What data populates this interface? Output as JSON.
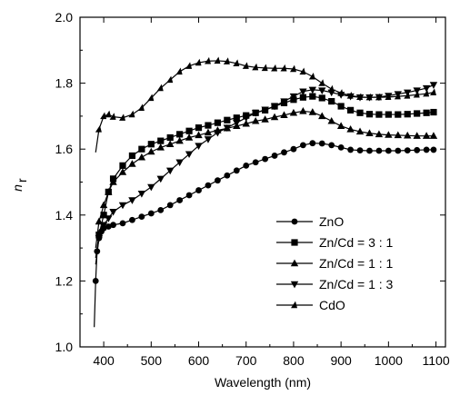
{
  "chart_data": {
    "type": "line",
    "xlabel": "Wavelength (nm)",
    "ylabel": "n",
    "ylabel_sub": "r",
    "xlim": [
      350,
      1120
    ],
    "ylim": [
      1.0,
      2.0
    ],
    "xticks": [
      400,
      500,
      600,
      700,
      800,
      900,
      1000,
      1100
    ],
    "yticks": [
      1.0,
      1.2,
      1.4,
      1.6,
      1.8,
      2.0
    ],
    "xtick_labels": [
      "400",
      "500",
      "600",
      "700",
      "800",
      "900",
      "1000",
      "1100"
    ],
    "ytick_labels": [
      "1.0",
      "1.2",
      "1.4",
      "1.6",
      "1.8",
      "2.0"
    ],
    "grid": false,
    "legend_position": "bottom-right",
    "series": [
      {
        "name": "ZnO",
        "marker": "circle",
        "x": [
          380,
          383,
          386,
          390,
          395,
          400,
          410,
          420,
          440,
          460,
          480,
          500,
          520,
          540,
          560,
          580,
          600,
          620,
          640,
          660,
          680,
          700,
          720,
          740,
          760,
          780,
          800,
          820,
          840,
          860,
          880,
          900,
          920,
          940,
          960,
          980,
          1000,
          1020,
          1040,
          1060,
          1080,
          1095
        ],
        "y": [
          1.06,
          1.2,
          1.29,
          1.33,
          1.35,
          1.36,
          1.365,
          1.37,
          1.375,
          1.385,
          1.395,
          1.405,
          1.415,
          1.43,
          1.445,
          1.46,
          1.475,
          1.49,
          1.505,
          1.52,
          1.535,
          1.55,
          1.56,
          1.57,
          1.58,
          1.59,
          1.6,
          1.612,
          1.618,
          1.617,
          1.612,
          1.605,
          1.598,
          1.596,
          1.595,
          1.595,
          1.595,
          1.595,
          1.596,
          1.597,
          1.598,
          1.598
        ]
      },
      {
        "name": "Zn/Cd = 3 : 1",
        "marker": "square",
        "x": [
          383,
          390,
          400,
          410,
          420,
          440,
          460,
          480,
          500,
          520,
          540,
          560,
          580,
          600,
          620,
          640,
          660,
          680,
          700,
          720,
          740,
          760,
          780,
          800,
          820,
          840,
          860,
          880,
          900,
          920,
          940,
          960,
          980,
          1000,
          1020,
          1040,
          1060,
          1080,
          1095
        ],
        "y": [
          1.27,
          1.34,
          1.4,
          1.47,
          1.51,
          1.55,
          1.58,
          1.6,
          1.615,
          1.625,
          1.635,
          1.645,
          1.655,
          1.665,
          1.672,
          1.68,
          1.688,
          1.695,
          1.702,
          1.71,
          1.718,
          1.73,
          1.74,
          1.75,
          1.757,
          1.76,
          1.755,
          1.745,
          1.73,
          1.718,
          1.71,
          1.706,
          1.705,
          1.705,
          1.705,
          1.706,
          1.708,
          1.71,
          1.712
        ]
      },
      {
        "name": "Zn/Cd = 1 : 1",
        "marker": "triangle-up",
        "x": [
          383,
          390,
          400,
          410,
          420,
          440,
          460,
          480,
          500,
          520,
          540,
          560,
          580,
          600,
          620,
          640,
          660,
          680,
          700,
          720,
          740,
          760,
          780,
          800,
          820,
          840,
          860,
          880,
          900,
          920,
          940,
          960,
          980,
          1000,
          1020,
          1040,
          1060,
          1080,
          1095
        ],
        "y": [
          1.3,
          1.38,
          1.43,
          1.47,
          1.5,
          1.53,
          1.555,
          1.575,
          1.592,
          1.605,
          1.615,
          1.625,
          1.635,
          1.642,
          1.65,
          1.657,
          1.663,
          1.67,
          1.677,
          1.685,
          1.69,
          1.697,
          1.703,
          1.71,
          1.715,
          1.712,
          1.7,
          1.685,
          1.67,
          1.66,
          1.653,
          1.648,
          1.645,
          1.643,
          1.642,
          1.641,
          1.64,
          1.64,
          1.64
        ]
      },
      {
        "name": "Zn/Cd = 1 : 3",
        "marker": "triangle-down",
        "x": [
          383,
          390,
          400,
          410,
          420,
          440,
          460,
          480,
          500,
          520,
          540,
          560,
          580,
          600,
          620,
          640,
          660,
          680,
          700,
          720,
          740,
          760,
          780,
          800,
          820,
          840,
          860,
          880,
          900,
          920,
          940,
          960,
          980,
          1000,
          1020,
          1040,
          1060,
          1080,
          1095
        ],
        "y": [
          1.25,
          1.33,
          1.37,
          1.39,
          1.41,
          1.43,
          1.445,
          1.465,
          1.485,
          1.51,
          1.535,
          1.56,
          1.585,
          1.61,
          1.63,
          1.65,
          1.665,
          1.68,
          1.695,
          1.71,
          1.72,
          1.73,
          1.745,
          1.76,
          1.775,
          1.78,
          1.778,
          1.772,
          1.765,
          1.76,
          1.757,
          1.757,
          1.758,
          1.762,
          1.767,
          1.772,
          1.778,
          1.785,
          1.795
        ]
      },
      {
        "name": "CdO",
        "marker": "half-triangle",
        "x": [
          383,
          390,
          400,
          410,
          420,
          440,
          460,
          480,
          500,
          520,
          540,
          560,
          580,
          600,
          620,
          640,
          660,
          680,
          700,
          720,
          740,
          760,
          780,
          800,
          820,
          840,
          860,
          880,
          900,
          920,
          940,
          960,
          980,
          1000,
          1020,
          1040,
          1060,
          1080,
          1095
        ],
        "y": [
          1.59,
          1.66,
          1.7,
          1.705,
          1.698,
          1.695,
          1.705,
          1.725,
          1.755,
          1.785,
          1.81,
          1.835,
          1.852,
          1.862,
          1.867,
          1.868,
          1.866,
          1.86,
          1.852,
          1.848,
          1.846,
          1.845,
          1.845,
          1.843,
          1.835,
          1.82,
          1.8,
          1.782,
          1.77,
          1.762,
          1.758,
          1.757,
          1.757,
          1.758,
          1.76,
          1.762,
          1.765,
          1.768,
          1.772
        ]
      }
    ]
  }
}
